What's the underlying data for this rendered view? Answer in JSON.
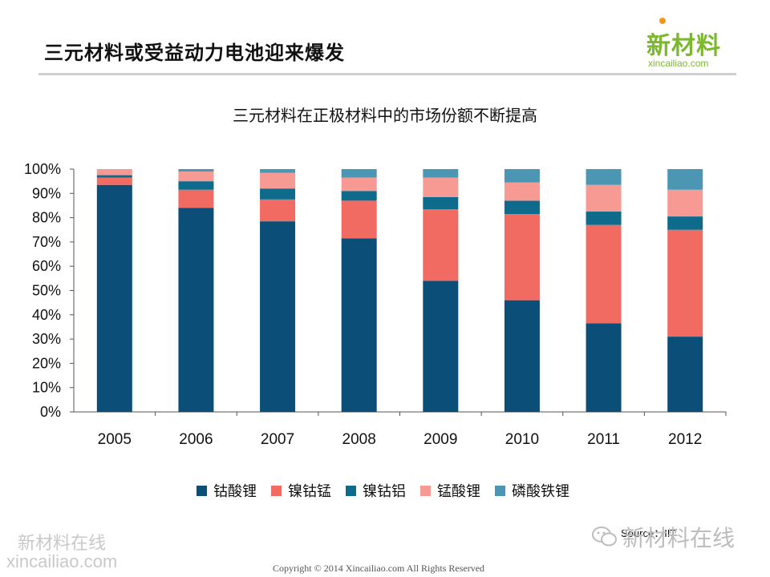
{
  "header": {
    "title": "三元材料或受益动力电池迎来爆发",
    "logo_text": "新材料",
    "logo_url": "xincailiao.com"
  },
  "chart_data": {
    "type": "bar",
    "stacked": true,
    "title": "三元材料在正极材料中的市场份额不断提高",
    "xlabel": "",
    "ylabel": "",
    "ylim": [
      0,
      100
    ],
    "yticks": [
      "0%",
      "10%",
      "20%",
      "30%",
      "40%",
      "50%",
      "60%",
      "70%",
      "80%",
      "90%",
      "100%"
    ],
    "categories": [
      "2005",
      "2006",
      "2007",
      "2008",
      "2009",
      "2010",
      "2011",
      "2012"
    ],
    "series": [
      {
        "name": "钴酸锂",
        "color": "#0b4f79",
        "values": [
          93.5,
          84,
          78.5,
          71.5,
          54,
          46,
          36.5,
          31
        ]
      },
      {
        "name": "镍钴锰",
        "color": "#f26b63",
        "values": [
          3,
          7.5,
          9,
          15.5,
          29.5,
          35.5,
          40.5,
          44
        ]
      },
      {
        "name": "镍钴铝",
        "color": "#0e6b8c",
        "values": [
          1,
          3.5,
          4.5,
          4,
          5,
          5.5,
          5.5,
          5.5
        ]
      },
      {
        "name": "锰酸锂",
        "color": "#f89a94",
        "values": [
          2.5,
          4,
          6.5,
          5.5,
          8,
          7.5,
          11,
          11
        ]
      },
      {
        "name": "磷酸铁锂",
        "color": "#4a96b3",
        "values": [
          0,
          1,
          1.5,
          3.5,
          3.5,
          5.5,
          6.5,
          8.5
        ]
      }
    ],
    "grid": false,
    "legend_position": "bottom"
  },
  "source": "Source：IIT",
  "watermarks": {
    "left_line1": "新材料在线",
    "left_line2": "xincailiao.com",
    "right_text": "新材料在线"
  },
  "footer": {
    "copyright": "Copyright © 2014   Xincailiao.com    All Rights Reserved"
  }
}
